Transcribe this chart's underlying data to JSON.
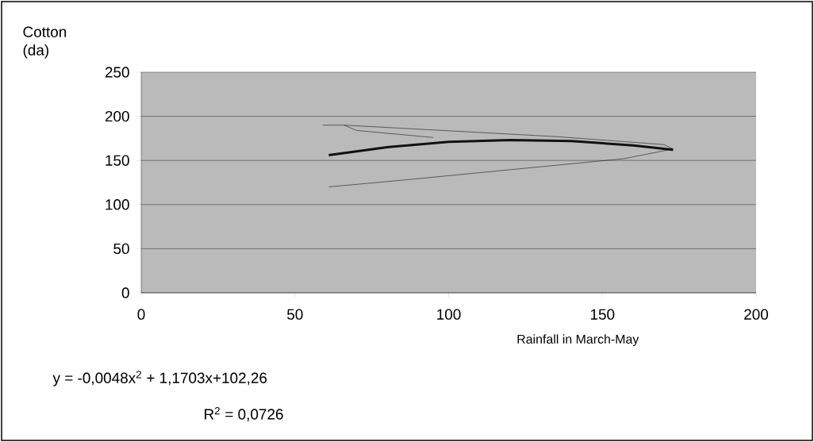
{
  "chart_data": {
    "type": "line",
    "xlabel": "Rainfall in March-May",
    "ylabel": "Cotton (da)",
    "xlim": [
      0,
      200
    ],
    "ylim": [
      0,
      250
    ],
    "xticks": [
      0,
      50,
      100,
      150,
      200
    ],
    "yticks": [
      0,
      50,
      100,
      150,
      200,
      250
    ],
    "grid": "y",
    "series": [
      {
        "color": "#1a1a1a",
        "x": [
          59,
          66,
          135,
          170,
          173,
          157,
          86,
          61
        ],
        "values": [
          190,
          190,
          177,
          168,
          163,
          152,
          128,
          120
        ]
      },
      {
        "color": "#1a1a1a",
        "x": [
          66,
          70,
          95
        ],
        "values": [
          190,
          184,
          176
        ]
      },
      {
        "type": "line",
        "color": "#111111",
        "x": [
          61,
          80,
          100,
          120,
          140,
          160,
          173
        ],
        "values": [
          156,
          165,
          171,
          173,
          172,
          167,
          162
        ]
      }
    ],
    "annotations": [
      "y = -0,0048x$^{2}$ + 1,1703x+102,26",
      "R$^{2}$ = 0,0726"
    ]
  }
}
